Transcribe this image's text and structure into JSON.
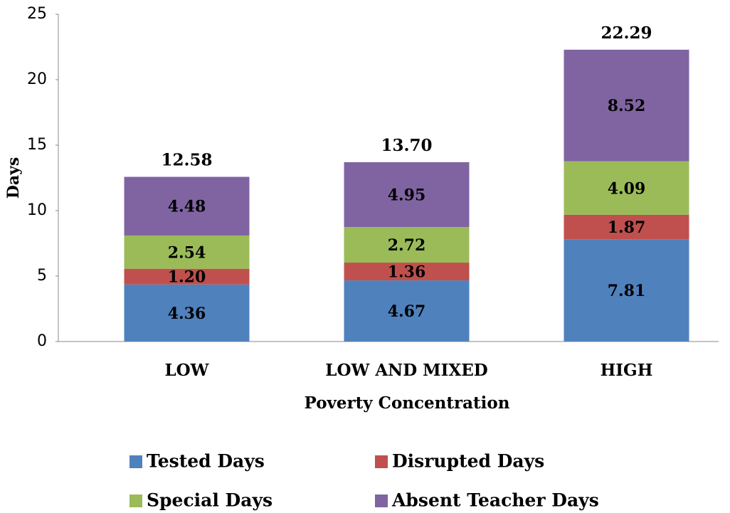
{
  "chart_data": {
    "type": "stacked_bar",
    "x_label": "Poverty Concentration",
    "y_label": "Days",
    "categories": [
      "LOW",
      "LOW AND MIXED",
      "HIGH"
    ],
    "series": [
      {
        "name": "Tested Days",
        "color": "#4f81bd",
        "values": [
          4.36,
          4.67,
          7.81
        ],
        "value_labels": [
          "4.36",
          "4.67",
          "7.81"
        ]
      },
      {
        "name": "Disrupted Days",
        "color": "#c0504d",
        "values": [
          1.2,
          1.36,
          1.87
        ],
        "value_labels": [
          "1.20",
          "1.36",
          "1.87"
        ]
      },
      {
        "name": "Special Days",
        "color": "#9bbb59",
        "values": [
          2.54,
          2.72,
          4.09
        ],
        "value_labels": [
          "2.54",
          "2.72",
          "4.09"
        ]
      },
      {
        "name": "Absent Teacher Days",
        "color": "#8064a2",
        "values": [
          4.48,
          4.95,
          8.52
        ],
        "value_labels": [
          "4.48",
          "4.95",
          "8.52"
        ]
      }
    ],
    "totals": {
      "values": [
        12.58,
        13.7,
        22.29
      ],
      "value_labels": [
        "12.58",
        "13.70",
        "22.29"
      ]
    },
    "ylim": [
      0,
      25
    ],
    "yticks": [
      0,
      5,
      10,
      15,
      20,
      25
    ],
    "grid": false,
    "legend": "bottom"
  }
}
